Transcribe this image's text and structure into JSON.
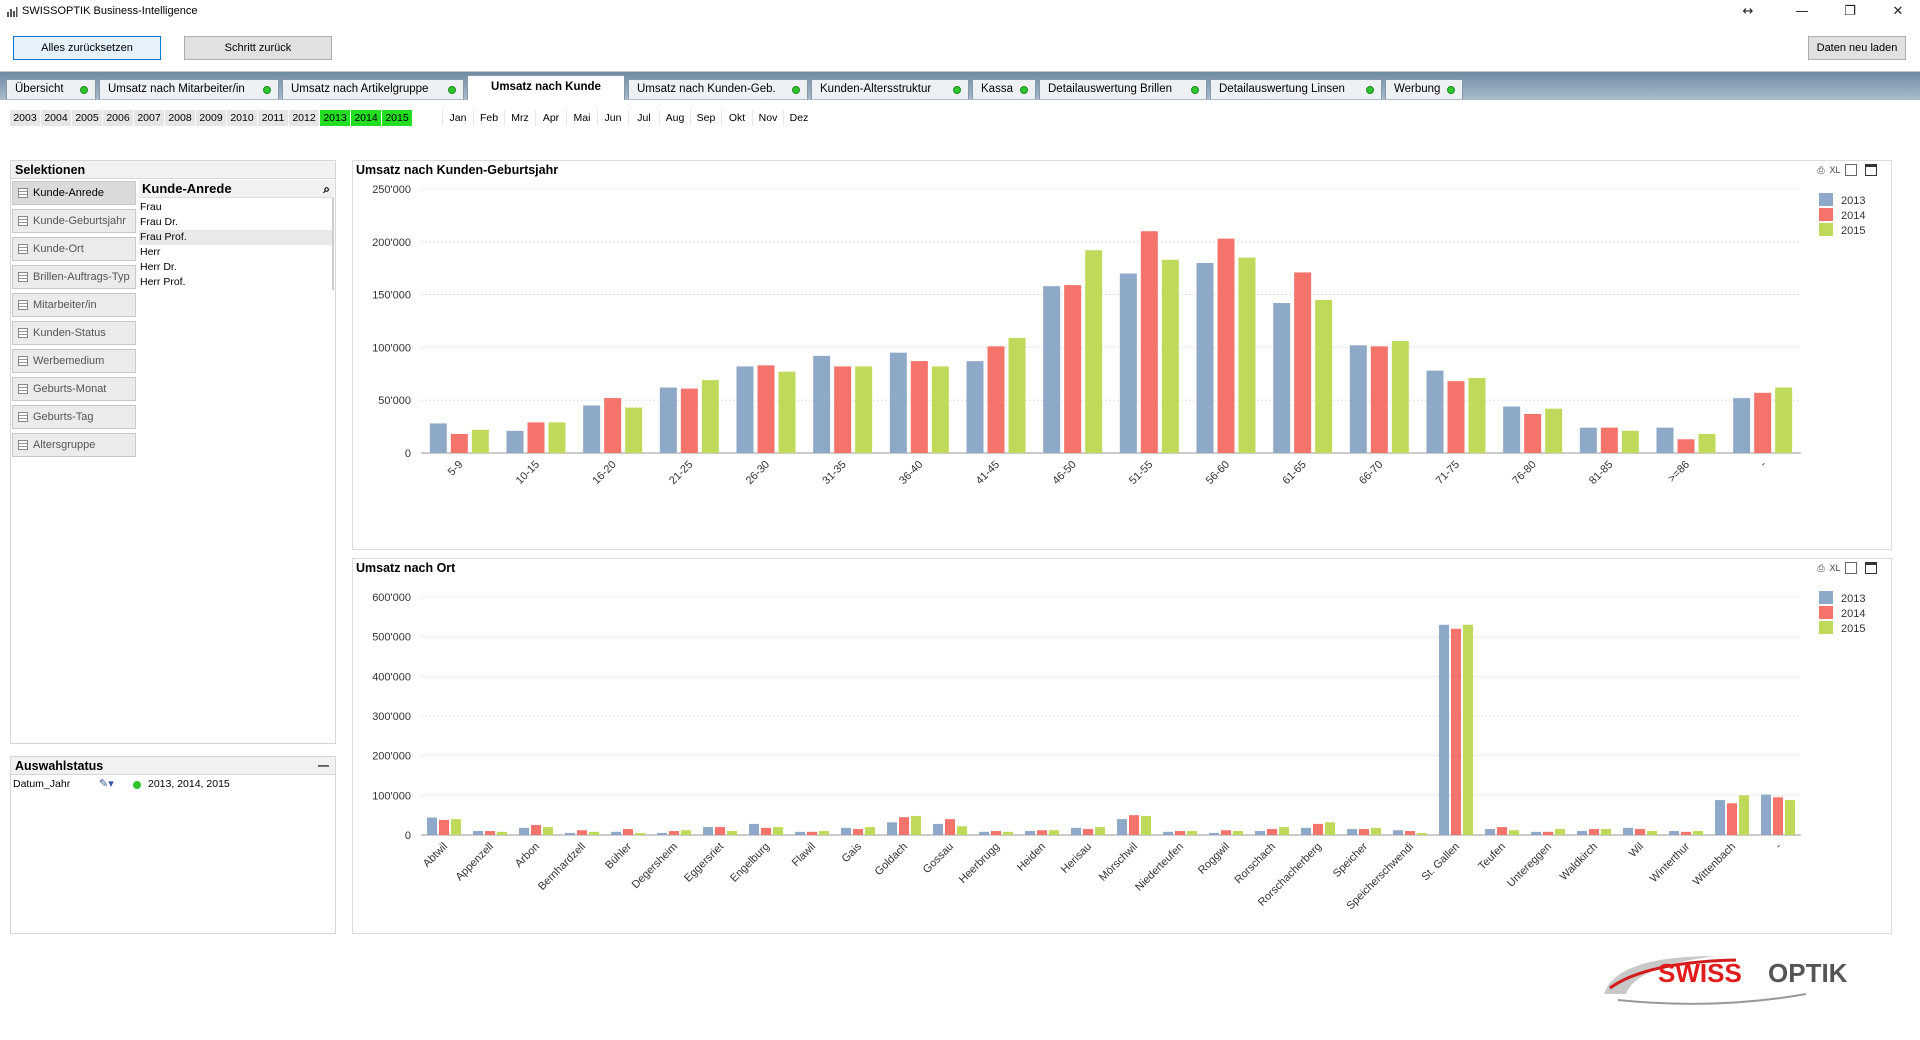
{
  "window": {
    "title": "SWISSOPTIK Business-Intelligence",
    "controls": [
      "↔",
      "—",
      "❐",
      "✕"
    ]
  },
  "toolbar": {
    "reset_all": "Alles zurücksetzen",
    "step_back": "Schritt zurück",
    "reload": "Daten neu laden"
  },
  "tabs": [
    {
      "label": "Übersicht",
      "active": false
    },
    {
      "label": "Umsatz nach Mitarbeiter/in",
      "active": false
    },
    {
      "label": "Umsatz nach Artikelgruppe",
      "active": false
    },
    {
      "label": "Umsatz nach Kunde",
      "active": true
    },
    {
      "label": "Umsatz nach Kunden-Geb.",
      "active": false
    },
    {
      "label": "Kunden-Altersstruktur",
      "active": false
    },
    {
      "label": "Kassa",
      "active": false
    },
    {
      "label": "Detailauswertung Brillen",
      "active": false
    },
    {
      "label": "Detailauswertung Linsen",
      "active": false
    },
    {
      "label": "Werbung",
      "active": false
    }
  ],
  "years": [
    {
      "label": "2003",
      "selected": false
    },
    {
      "label": "2004",
      "selected": false
    },
    {
      "label": "2005",
      "selected": false
    },
    {
      "label": "2006",
      "selected": false
    },
    {
      "label": "2007",
      "selected": false
    },
    {
      "label": "2008",
      "selected": false
    },
    {
      "label": "2009",
      "selected": false
    },
    {
      "label": "2010",
      "selected": false
    },
    {
      "label": "2011",
      "selected": false
    },
    {
      "label": "2012",
      "selected": false
    },
    {
      "label": "2013",
      "selected": true
    },
    {
      "label": "2014",
      "selected": true
    },
    {
      "label": "2015",
      "selected": true
    }
  ],
  "months": [
    "Jan",
    "Feb",
    "Mrz",
    "Apr",
    "Mai",
    "Jun",
    "Jul",
    "Aug",
    "Sep",
    "Okt",
    "Nov",
    "Dez"
  ],
  "selections": {
    "title": "Selektionen",
    "buttons": [
      {
        "label": "Kunde-Anrede",
        "active": true
      },
      {
        "label": "Kunde-Geburtsjahr",
        "active": false
      },
      {
        "label": "Kunde-Ort",
        "active": false
      },
      {
        "label": "Brillen-Auftrags-Typ",
        "active": false
      },
      {
        "label": "Mitarbeiter/in",
        "active": false
      },
      {
        "label": "Kunden-Status",
        "active": false
      },
      {
        "label": "Werbemedium",
        "active": false
      },
      {
        "label": "Geburts-Monat",
        "active": false
      },
      {
        "label": "Geburts-Tag",
        "active": false
      },
      {
        "label": "Altersgruppe",
        "active": false
      }
    ],
    "listbox": {
      "title": "Kunde-Anrede",
      "items": [
        "Frau",
        "Frau Dr.",
        "Frau Prof.",
        "Herr",
        "Herr Dr.",
        "Herr Prof."
      ]
    }
  },
  "status": {
    "title": "Auswahlstatus",
    "minimize": "—",
    "field": "Datum_Jahr",
    "value": "2013, 2014, 2015"
  },
  "charts": {
    "icons": [
      "print-icon",
      "xl-icon",
      "restore-icon",
      "maximize-icon"
    ],
    "xl_label": "XL"
  },
  "colors": {
    "s2013": "#8ea8c8",
    "s2014": "#f4736a",
    "s2015": "#bfd95a",
    "year_selected": "#22dd22",
    "accent": "#0078d7"
  },
  "chart_data": [
    {
      "type": "bar",
      "title": "Umsatz nach Kunden-Geburtsjahr",
      "categories": [
        "5-9",
        "10-15",
        "16-20",
        "21-25",
        "26-30",
        "31-35",
        "36-40",
        "41-45",
        "46-50",
        "51-55",
        "56-60",
        "61-65",
        "66-70",
        "71-75",
        "76-80",
        "81-85",
        ">=86",
        "-"
      ],
      "series": [
        {
          "name": "2013",
          "values": [
            28000,
            21000,
            45000,
            62000,
            82000,
            92000,
            95000,
            87000,
            158000,
            170000,
            180000,
            142000,
            102000,
            78000,
            44000,
            24000,
            24000,
            52000
          ]
        },
        {
          "name": "2014",
          "values": [
            18000,
            29000,
            52000,
            61000,
            83000,
            82000,
            87000,
            101000,
            159000,
            210000,
            203000,
            171000,
            101000,
            68000,
            37000,
            24000,
            13000,
            57000
          ]
        },
        {
          "name": "2015",
          "values": [
            22000,
            29000,
            43000,
            69000,
            77000,
            82000,
            82000,
            109000,
            192000,
            183000,
            185000,
            145000,
            106000,
            71000,
            42000,
            21000,
            18000,
            62000
          ]
        }
      ],
      "ylim": [
        0,
        250000
      ],
      "yticks": [
        0,
        50000,
        100000,
        150000,
        200000,
        250000
      ],
      "ytick_labels": [
        "0",
        "50'000",
        "100'000",
        "150'000",
        "200'000",
        "250'000"
      ],
      "legend": "top-right",
      "grid": true
    },
    {
      "type": "bar",
      "title": "Umsatz nach Ort",
      "categories": [
        "Abtwil",
        "Appenzell",
        "Arbon",
        "Bernhardzell",
        "Bühler",
        "Degersheim",
        "Eggersriet",
        "Engelburg",
        "Flawil",
        "Gais",
        "Goldach",
        "Gossau",
        "Heerbrugg",
        "Heiden",
        "Herisau",
        "Mörschwil",
        "Niederteufen",
        "Roggwil",
        "Rorschach",
        "Rorschacherberg",
        "Speicher",
        "Speicherschwendi",
        "St. Gallen",
        "Teufen",
        "Untereggen",
        "Waldkirch",
        "Wil",
        "Winterthur",
        "Wittenbach",
        "-"
      ],
      "series": [
        {
          "name": "2013",
          "values": [
            44000,
            10000,
            18000,
            5000,
            8000,
            5000,
            20000,
            28000,
            8000,
            18000,
            32000,
            28000,
            8000,
            10000,
            18000,
            40000,
            8000,
            5000,
            10000,
            18000,
            15000,
            12000,
            530000,
            15000,
            8000,
            10000,
            18000,
            10000,
            88000,
            102000
          ]
        },
        {
          "name": "2014",
          "values": [
            38000,
            10000,
            25000,
            12000,
            15000,
            10000,
            20000,
            18000,
            8000,
            15000,
            45000,
            40000,
            10000,
            12000,
            15000,
            50000,
            10000,
            12000,
            15000,
            28000,
            15000,
            10000,
            520000,
            20000,
            8000,
            15000,
            15000,
            8000,
            80000,
            95000
          ]
        },
        {
          "name": "2015",
          "values": [
            40000,
            8000,
            20000,
            8000,
            5000,
            12000,
            10000,
            20000,
            10000,
            20000,
            48000,
            22000,
            8000,
            12000,
            20000,
            48000,
            10000,
            10000,
            20000,
            32000,
            18000,
            5000,
            530000,
            12000,
            15000,
            15000,
            10000,
            10000,
            100000,
            88000
          ]
        }
      ],
      "ylim": [
        0,
        600000
      ],
      "yticks": [
        0,
        100000,
        200000,
        300000,
        400000,
        500000,
        600000
      ],
      "ytick_labels": [
        "0",
        "100'000",
        "200'000",
        "300'000",
        "400'000",
        "500'000",
        "600'000"
      ],
      "legend": "top-right",
      "grid": true
    }
  ],
  "logo": {
    "part1": "SWISS",
    "part2": "OPTIK"
  }
}
